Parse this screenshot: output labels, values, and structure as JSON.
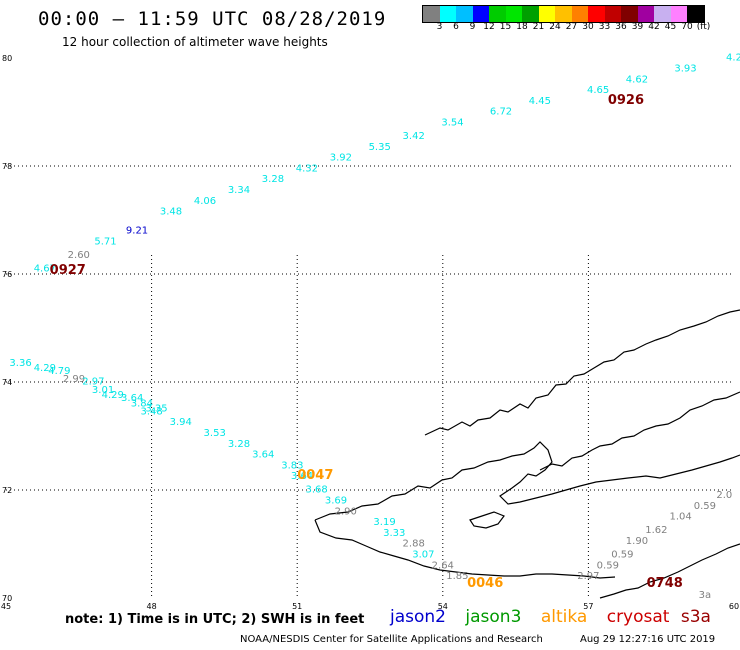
{
  "title": "00:00 – 11:59 UTC 08/28/2019",
  "subtitle": "12 hour collection of altimeter wave heights",
  "colorbar": {
    "colors": [
      "#808080",
      "#00ffff",
      "#00bfff",
      "#0000ff",
      "#00cc00",
      "#00e600",
      "#00a000",
      "#ffff00",
      "#ffc000",
      "#ff8000",
      "#ff0000",
      "#c00000",
      "#800000",
      "#a000a0",
      "#c8b0f0",
      "#ff80ff",
      "#000000"
    ],
    "labels": [
      "3",
      "6",
      "9",
      "12",
      "15",
      "18",
      "21",
      "24",
      "27",
      "30",
      "33",
      "36",
      "39",
      "42",
      "45",
      "70",
      "(ft)"
    ]
  },
  "axes": {
    "lon_ticks": [
      "45",
      "48",
      "51",
      "54",
      "57",
      "60"
    ],
    "lat_ticks": [
      "70",
      "72",
      "74",
      "76",
      "78",
      "80"
    ]
  },
  "points": [
    {
      "lon": 45.8,
      "lat": 76.05,
      "v": "4.67",
      "c": "#00e5e5"
    },
    {
      "lon": 46.5,
      "lat": 76.3,
      "v": "2.60",
      "c": "#808080"
    },
    {
      "lon": 47.05,
      "lat": 76.55,
      "v": "5.71",
      "c": "#00e5e5"
    },
    {
      "lon": 47.7,
      "lat": 76.75,
      "v": "9.21",
      "c": "#0000cc"
    },
    {
      "lon": 48.4,
      "lat": 77.1,
      "v": "3.48",
      "c": "#00e5e5"
    },
    {
      "lon": 49.1,
      "lat": 77.3,
      "v": "4.06",
      "c": "#00e5e5"
    },
    {
      "lon": 49.8,
      "lat": 77.5,
      "v": "3.34",
      "c": "#00e5e5"
    },
    {
      "lon": 50.5,
      "lat": 77.7,
      "v": "3.28",
      "c": "#00e5e5"
    },
    {
      "lon": 51.2,
      "lat": 77.9,
      "v": "4.32",
      "c": "#00e5e5"
    },
    {
      "lon": 51.9,
      "lat": 78.1,
      "v": "3.92",
      "c": "#00e5e5"
    },
    {
      "lon": 52.7,
      "lat": 78.3,
      "v": "5.35",
      "c": "#00e5e5"
    },
    {
      "lon": 53.4,
      "lat": 78.5,
      "v": "3.42",
      "c": "#00e5e5"
    },
    {
      "lon": 54.2,
      "lat": 78.75,
      "v": "3.54",
      "c": "#00e5e5"
    },
    {
      "lon": 55.2,
      "lat": 78.95,
      "v": "6.72",
      "c": "#00e5e5"
    },
    {
      "lon": 56.0,
      "lat": 79.15,
      "v": "4.45",
      "c": "#00e5e5"
    },
    {
      "lon": 57.2,
      "lat": 79.35,
      "v": "4.65",
      "c": "#00e5e5"
    },
    {
      "lon": 58.0,
      "lat": 79.55,
      "v": "4.62",
      "c": "#00e5e5"
    },
    {
      "lon": 59.0,
      "lat": 79.75,
      "v": "3.93",
      "c": "#00e5e5"
    },
    {
      "lon": 60.0,
      "lat": 79.95,
      "v": "4.2",
      "c": "#00e5e5"
    },
    {
      "lon": 45.3,
      "lat": 74.3,
      "v": "3.36",
      "c": "#00e5e5"
    },
    {
      "lon": 45.8,
      "lat": 74.2,
      "v": "4.29",
      "c": "#00e5e5"
    },
    {
      "lon": 46.1,
      "lat": 74.15,
      "v": "4.79",
      "c": "#00e5e5"
    },
    {
      "lon": 46.4,
      "lat": 74.0,
      "v": "2.99",
      "c": "#808080"
    },
    {
      "lon": 46.8,
      "lat": 73.95,
      "v": "2.97",
      "c": "#00e5e5"
    },
    {
      "lon": 47.0,
      "lat": 73.8,
      "v": "3.01",
      "c": "#00e5e5"
    },
    {
      "lon": 47.2,
      "lat": 73.7,
      "v": "4.29",
      "c": "#00e5e5"
    },
    {
      "lon": 47.6,
      "lat": 73.65,
      "v": "3.64",
      "c": "#00e5e5"
    },
    {
      "lon": 47.8,
      "lat": 73.55,
      "v": "3.84",
      "c": "#00e5e5"
    },
    {
      "lon": 48.1,
      "lat": 73.45,
      "v": "3.35",
      "c": "#00e5e5"
    },
    {
      "lon": 48.0,
      "lat": 73.4,
      "v": "3.48",
      "c": "#00e5e5"
    },
    {
      "lon": 48.6,
      "lat": 73.2,
      "v": "3.94",
      "c": "#00e5e5"
    },
    {
      "lon": 49.3,
      "lat": 73.0,
      "v": "3.53",
      "c": "#00e5e5"
    },
    {
      "lon": 49.8,
      "lat": 72.8,
      "v": "3.28",
      "c": "#00e5e5"
    },
    {
      "lon": 50.3,
      "lat": 72.6,
      "v": "3.64",
      "c": "#00e5e5"
    },
    {
      "lon": 50.9,
      "lat": 72.4,
      "v": "3.83",
      "c": "#00e5e5"
    },
    {
      "lon": 51.1,
      "lat": 72.2,
      "v": "3.64",
      "c": "#00e5e5"
    },
    {
      "lon": 51.4,
      "lat": 71.95,
      "v": "3.68",
      "c": "#00e5e5"
    },
    {
      "lon": 51.8,
      "lat": 71.75,
      "v": "3.69",
      "c": "#00e5e5"
    },
    {
      "lon": 52.0,
      "lat": 71.55,
      "v": "2.90",
      "c": "#808080"
    },
    {
      "lon": 52.8,
      "lat": 71.35,
      "v": "3.19",
      "c": "#00e5e5"
    },
    {
      "lon": 53.0,
      "lat": 71.15,
      "v": "3.33",
      "c": "#00e5e5"
    },
    {
      "lon": 53.4,
      "lat": 70.95,
      "v": "2.88",
      "c": "#808080"
    },
    {
      "lon": 53.6,
      "lat": 70.75,
      "v": "3.07",
      "c": "#00e5e5"
    },
    {
      "lon": 54.0,
      "lat": 70.55,
      "v": "2.64",
      "c": "#808080"
    },
    {
      "lon": 54.3,
      "lat": 70.35,
      "v": "1.85",
      "c": "#808080"
    },
    {
      "lon": 57.0,
      "lat": 70.35,
      "v": "2.97",
      "c": "#808080"
    },
    {
      "lon": 57.4,
      "lat": 70.55,
      "v": "0.59",
      "c": "#808080"
    },
    {
      "lon": 57.7,
      "lat": 70.75,
      "v": "0.59",
      "c": "#808080"
    },
    {
      "lon": 58.0,
      "lat": 71.0,
      "v": "1.90",
      "c": "#808080"
    },
    {
      "lon": 58.4,
      "lat": 71.2,
      "v": "1.62",
      "c": "#808080"
    },
    {
      "lon": 58.9,
      "lat": 71.45,
      "v": "1.04",
      "c": "#808080"
    },
    {
      "lon": 59.4,
      "lat": 71.65,
      "v": "0.59",
      "c": "#808080"
    },
    {
      "lon": 59.8,
      "lat": 71.85,
      "v": "2.0",
      "c": "#808080"
    },
    {
      "lon": 59.4,
      "lat": 70.0,
      "v": "3a",
      "c": "#808080"
    }
  ],
  "passes": [
    {
      "lon": 45.9,
      "lat": 76.0,
      "v": "0927",
      "c": "#800000"
    },
    {
      "lon": 57.4,
      "lat": 79.15,
      "v": "0926",
      "c": "#800000"
    },
    {
      "lon": 51.0,
      "lat": 72.2,
      "v": "0047",
      "c": "#ff9900"
    },
    {
      "lon": 54.5,
      "lat": 70.2,
      "v": "0046",
      "c": "#ff9900"
    },
    {
      "lon": 58.2,
      "lat": 70.2,
      "v": "0748",
      "c": "#800000"
    }
  ],
  "footer": {
    "note": "note: 1) Time is in UTC; 2) SWH is in feet",
    "legend": [
      {
        "name": "jason2",
        "color": "#0000cc"
      },
      {
        "name": "jason3",
        "color": "#009900"
      },
      {
        "name": "altika",
        "color": "#ff9900"
      },
      {
        "name": "cryosat",
        "color": "#cc0000"
      },
      {
        "name": "s3a",
        "color": "#990000"
      }
    ],
    "credit": "NOAA/NESDIS Center for Satellite Applications and Research",
    "timestamp": "Aug 29 12:27:16 UTC 2019"
  }
}
